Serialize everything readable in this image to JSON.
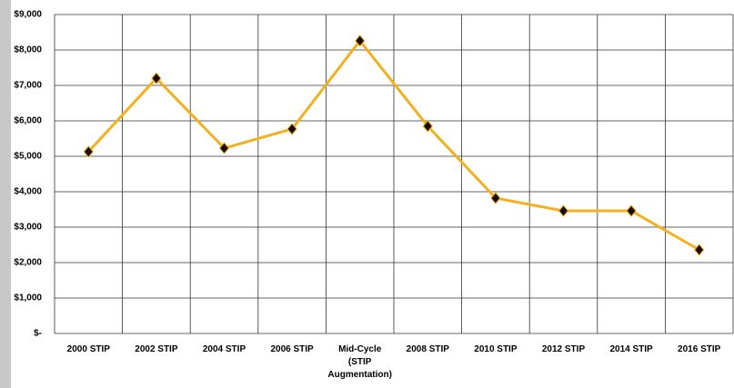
{
  "chart_data": {
    "type": "line",
    "categories": [
      "2000 STIP",
      "2002 STIP",
      "2004 STIP",
      "2006 STIP",
      "Mid-Cycle (STIP Augmentation)",
      "2008 STIP",
      "2010 STIP",
      "2012 STIP",
      "2014 STIP",
      "2016 STIP"
    ],
    "series": [
      {
        "color": "#f2b01e",
        "values": [
          5130,
          7200,
          5230,
          5770,
          8260,
          5850,
          3820,
          3460,
          3460,
          2360
        ]
      }
    ],
    "ylim": [
      0,
      9000
    ],
    "yticks": [
      {
        "value": 0,
        "label": "$-"
      },
      {
        "value": 1000,
        "label": "$1,000"
      },
      {
        "value": 2000,
        "label": "$2,000"
      },
      {
        "value": 3000,
        "label": "$3,000"
      },
      {
        "value": 4000,
        "label": "$4,000"
      },
      {
        "value": 5000,
        "label": "$5,000"
      },
      {
        "value": 6000,
        "label": "$6,000"
      },
      {
        "value": 7000,
        "label": "$7,000"
      },
      {
        "value": 8000,
        "label": "$8,000"
      },
      {
        "value": 9000,
        "label": "$9,000"
      }
    ],
    "grid": true
  }
}
